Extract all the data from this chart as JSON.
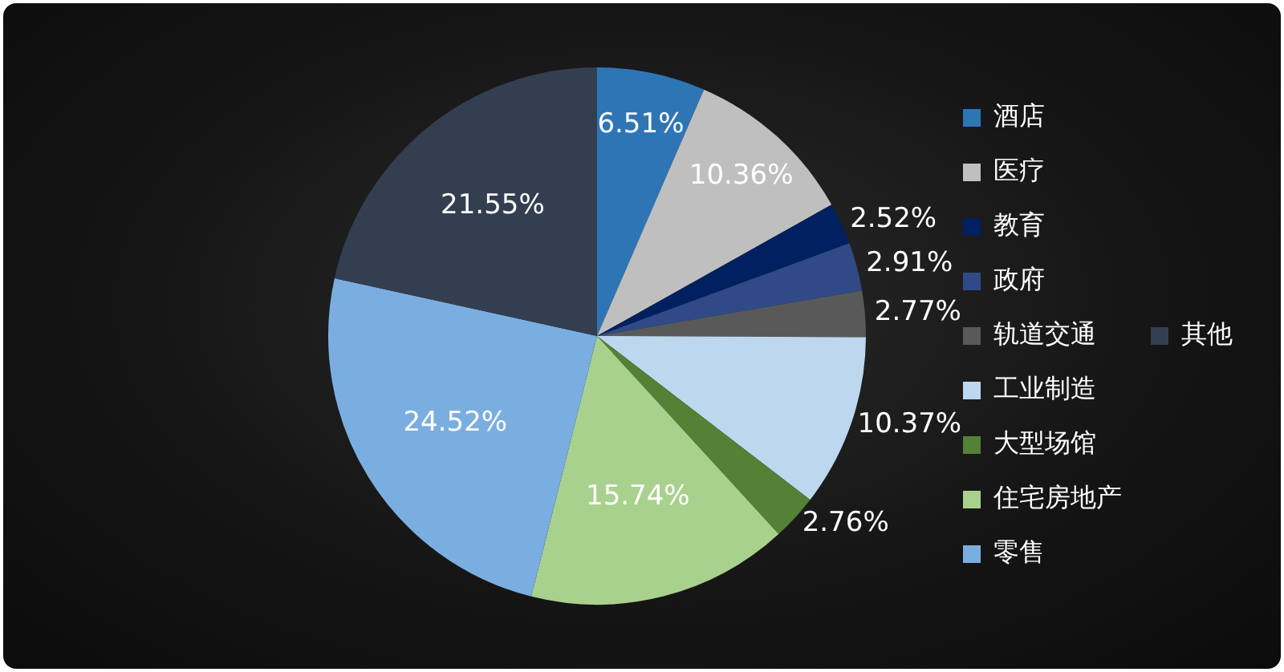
{
  "chart_data": {
    "type": "pie",
    "categories": [
      "酒店",
      "医疗",
      "教育",
      "政府",
      "轨道交通",
      "工业制造",
      "大型场馆",
      "住宅房地产",
      "零售",
      "其他"
    ],
    "values": [
      6.51,
      10.36,
      2.52,
      2.91,
      2.77,
      10.37,
      2.76,
      15.74,
      24.52,
      21.55
    ],
    "colors": [
      "#2e75b6",
      "#bfbfbf",
      "#002060",
      "#2f4a86",
      "#595959",
      "#bdd7ee",
      "#538135",
      "#a9d18e",
      "#7aaee0",
      "#333f50"
    ],
    "value_labels": [
      "6.51%",
      "10.36%",
      "2.52%",
      "2.91%",
      "2.77%",
      "10.37%",
      "2.76%",
      "15.74%",
      "24.52%",
      "21.55%"
    ],
    "legend": "right"
  }
}
